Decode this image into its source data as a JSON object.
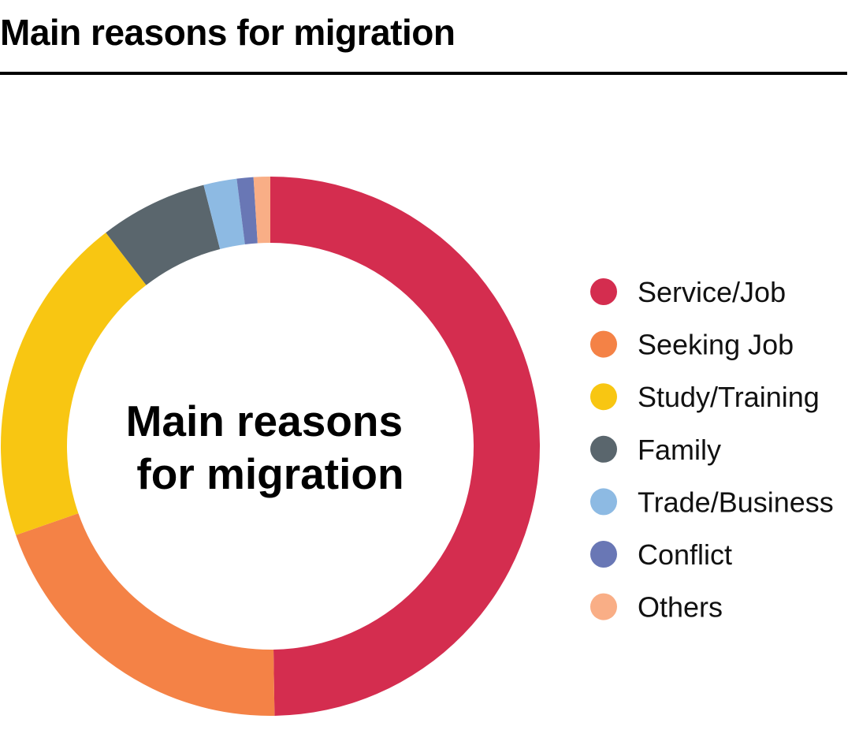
{
  "header": {
    "title": "Main reasons for migration"
  },
  "chart_data": {
    "type": "pie",
    "variant": "donut",
    "center_label": [
      "Main reasons",
      "for migration"
    ],
    "legend_position": "right",
    "categories": [
      "Service/Job",
      "Seeking Job",
      "Study/Training",
      "Family",
      "Trade/Business",
      "Conflict",
      "Others"
    ],
    "values": [
      50.0,
      20.0,
      20.0,
      6.5,
      2.0,
      1.0,
      1.0
    ],
    "colors": [
      "#D42D4F",
      "#F48246",
      "#F8C612",
      "#5A666D",
      "#8DBAE3",
      "#6977B5",
      "#F9AE86"
    ]
  }
}
